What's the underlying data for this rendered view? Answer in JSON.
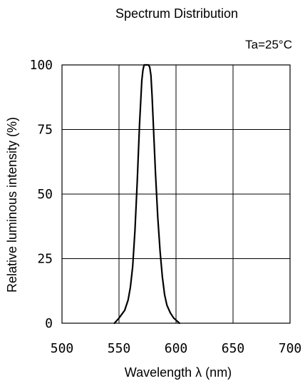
{
  "chart_data": {
    "type": "line",
    "title": "Spectrum Distribution",
    "condition": "Ta=25°C",
    "xlabel": "Wavelength  λ (nm)",
    "ylabel": "Relative luminous intensity  (%)",
    "xlim": [
      500,
      700
    ],
    "ylim": [
      0,
      100
    ],
    "x_ticks": [
      500,
      550,
      600,
      650,
      700
    ],
    "x_tick_labels": [
      "500",
      "550",
      "600",
      "650",
      "700"
    ],
    "y_ticks": [
      0,
      25,
      50,
      75,
      100
    ],
    "y_tick_labels": [
      "0",
      "25",
      "50",
      "75",
      "100"
    ],
    "grid": true,
    "series": [
      {
        "x": [
          546,
          550,
          555,
          558,
          560,
          562,
          564,
          566,
          568,
          570,
          571,
          572,
          573,
          574,
          575,
          576,
          577,
          578,
          579,
          580,
          582,
          584,
          586,
          588,
          590,
          592,
          595,
          598,
          601,
          603
        ],
        "y": [
          0,
          2,
          5,
          9,
          14,
          22,
          36,
          55,
          77,
          94,
          98,
          100,
          100,
          100,
          100,
          100,
          99,
          96,
          88,
          78,
          58,
          41,
          28,
          18,
          11,
          7,
          4,
          2,
          0.8,
          0
        ]
      }
    ]
  }
}
